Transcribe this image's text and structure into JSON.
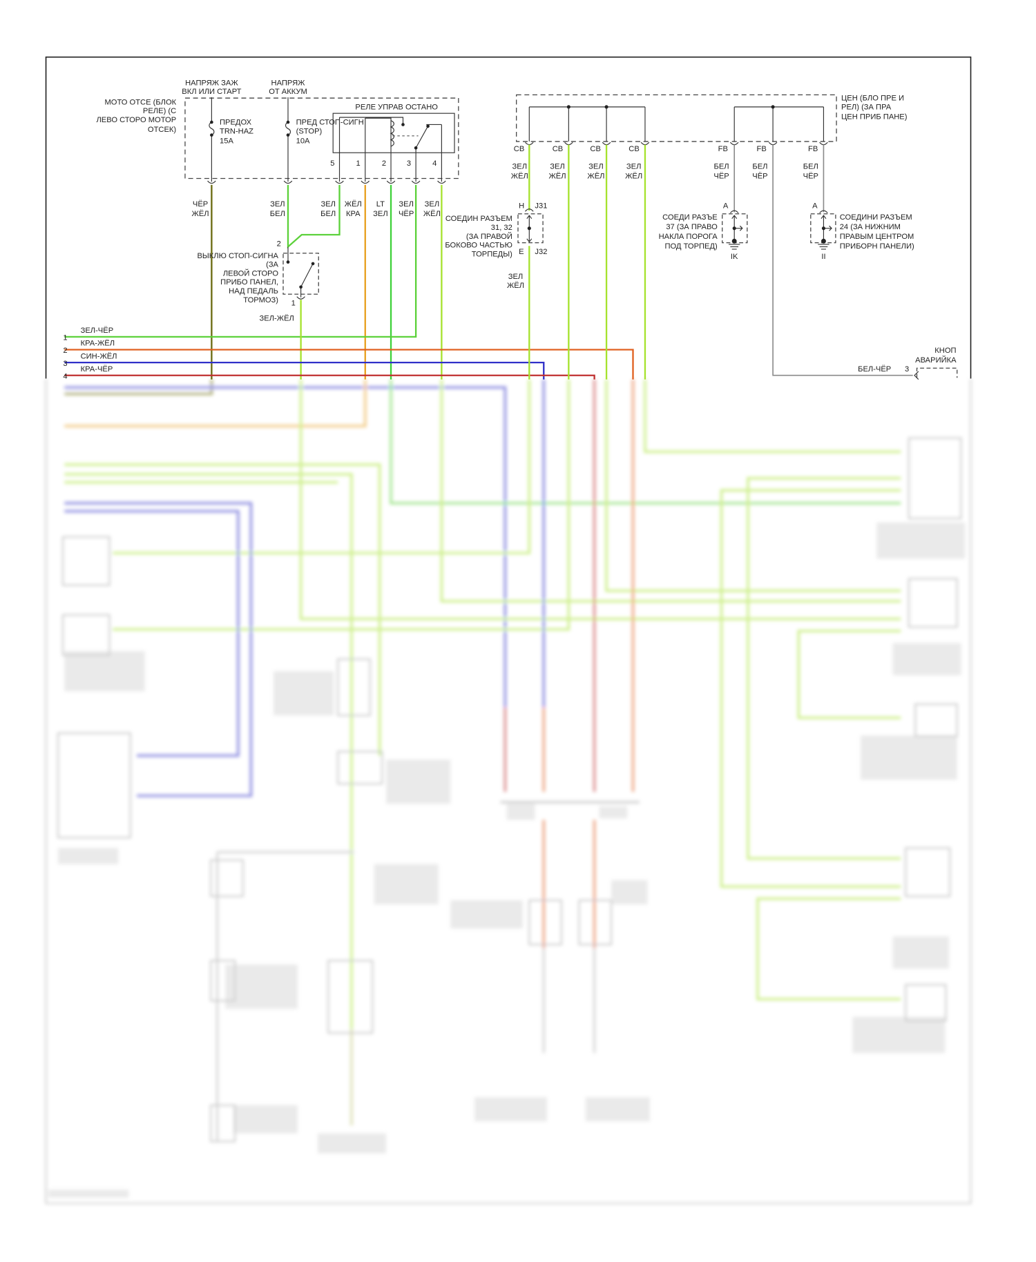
{
  "colors": {
    "green": "#5cd13a",
    "light_green": "#a6e22e",
    "olive": "#6b6b10",
    "orange": "#e8a020",
    "orange_red": "#e06020",
    "blue": "#3030c8",
    "red": "#c03030",
    "gray": "#8a8a8a"
  },
  "engine_box": {
    "label": [
      "МОТО ОТСЕ (БЛОК",
      "РЕЛЕ) (С",
      "ЛЕВО СТОРО МОТОР",
      "ОТСЕК)"
    ],
    "supply_ign": [
      "НАПРЯЖ ЗАЖ",
      "ВКЛ ИЛИ СТАРТ"
    ],
    "supply_batt": [
      "НАПРЯЖ",
      "ОТ АККУМ"
    ],
    "fuse1": [
      "ПРЕДОХ",
      "TRN-HAZ",
      "15A"
    ],
    "fuse2": [
      "ПРЕД СТОП-СИГН",
      "(STOP)",
      "10A"
    ],
    "relay_title": "РЕЛЕ УПРАВ ОСТАНО",
    "relay_pins": [
      "5",
      "1",
      "2",
      "3",
      "4"
    ]
  },
  "wire_labels_left": [
    [
      "ЧЁР",
      "ЖЁЛ"
    ],
    [
      "ЗЕЛ",
      "БЕЛ"
    ],
    [
      "ЗЕЛ",
      "БЕЛ"
    ],
    [
      "ЖЁЛ",
      "КРА"
    ],
    [
      "LT",
      "ЗЕЛ"
    ],
    [
      "ЗЕЛ",
      "ЧЁР"
    ],
    [
      "ЗЕЛ",
      "ЖЁЛ"
    ]
  ],
  "brake_switch": {
    "label": [
      "ВЫКЛЮ СТОП-СИГНА",
      "(ЗА",
      "ЛЕВОЙ СТОРО",
      "ПРИБО ПАНЕЛ,",
      "НАД ПЕДАЛЬ",
      "ТОРМОЗ)"
    ],
    "pin_in": "2",
    "pin_out": "1",
    "out_wire": "ЗЕЛ-ЖЁЛ"
  },
  "bus": [
    {
      "num": "1",
      "label": "ЗЕЛ-ЧЁР"
    },
    {
      "num": "2",
      "label": "КРА-ЖЁЛ"
    },
    {
      "num": "3",
      "label": "СИН-ЖЁЛ"
    },
    {
      "num": "4",
      "label": "КРА-ЧЁР"
    }
  ],
  "central_box": {
    "label": [
      "ЦЕН (БЛО ПРЕ И",
      "РЕЛ) (ЗА ПРА",
      "ЦЕН ПРИБ ПАНЕ)"
    ],
    "cb_pins": [
      "CB",
      "CB",
      "CB",
      "CB"
    ],
    "fb_pins": [
      "FB",
      "FB",
      "FB"
    ],
    "cb_wire": [
      "ЗЕЛ",
      "ЖЁЛ"
    ],
    "fb_wire": [
      "БЕЛ",
      "ЧЁР"
    ]
  },
  "joint_j31": {
    "pin_top": "H",
    "name_top": "J31",
    "pin_bottom": "E",
    "name_bottom": "J32",
    "label": [
      "СОЕДИН РАЗЪЕМ",
      "31, 32",
      "(ЗА ПРАВОЙ",
      "БОКОВО ЧАСТЬЮ",
      "ТОРПЕДЫ)"
    ],
    "out_wire": [
      "ЗЕЛ",
      "ЖЁЛ"
    ]
  },
  "ground_ik": {
    "pin": "A",
    "name": "IK",
    "label": [
      "СОЕДИ РАЗЪЕ",
      "37 (ЗА ПРАВО",
      "НАКЛА ПОРОГА",
      "ПОД ТОРПЕД)"
    ]
  },
  "ground_ii": {
    "pin": "A",
    "name": "II",
    "label": [
      "СОЕДИНИ РАЗЪЕМ",
      "24 (ЗА НИЖНИМ",
      "ПРАВЫМ ЦЕНТРОМ",
      "ПРИБОРН ПАНЕЛИ)"
    ]
  },
  "hazard_switch": {
    "label": [
      "КНОП",
      "АВАРИЙКА"
    ],
    "wire": "БЕЛ-ЧЁР",
    "pin": "3"
  }
}
